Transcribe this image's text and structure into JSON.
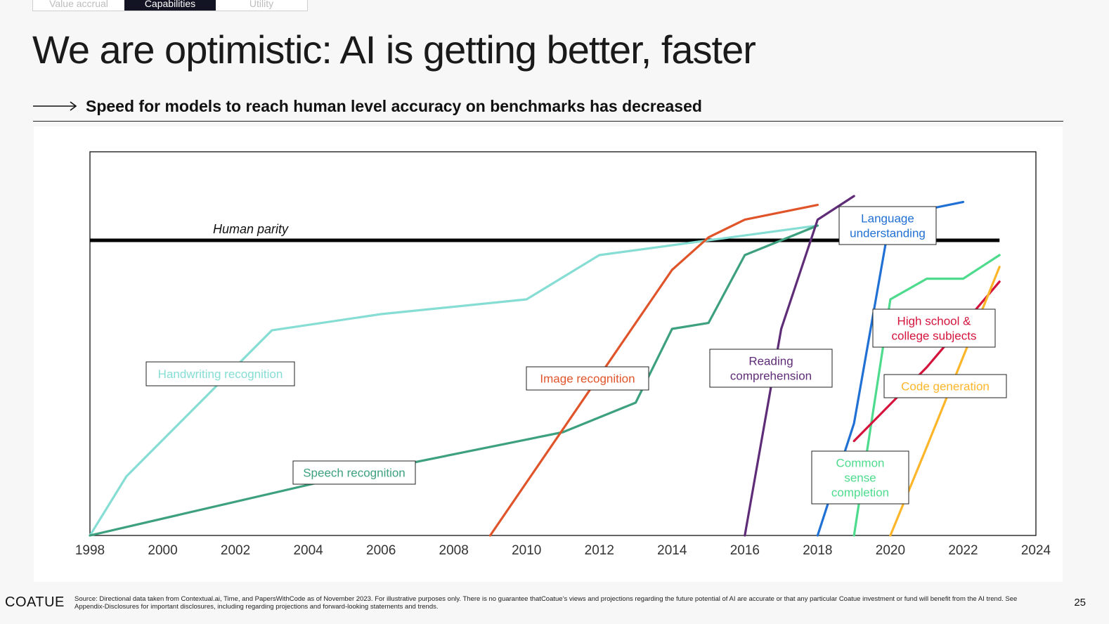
{
  "tabs": [
    {
      "label": "Value accrual",
      "active": false
    },
    {
      "label": "Capabilities",
      "active": true
    },
    {
      "label": "Utility",
      "active": false
    }
  ],
  "page": {
    "title": "We are optimistic: AI is getting better, faster",
    "subtitle": "Speed for models to reach human level accuracy on benchmarks has decreased"
  },
  "chart_data": {
    "type": "line",
    "title": "",
    "xlabel": "",
    "ylabel": "",
    "xlim": [
      1998,
      2024
    ],
    "ylim": [
      -100,
      30
    ],
    "x_ticks": [
      "1998",
      "2000",
      "2002",
      "2004",
      "2006",
      "2008",
      "2010",
      "2012",
      "2014",
      "2016",
      "2018",
      "2020",
      "2022",
      "2024"
    ],
    "grid": false,
    "reference_line": {
      "label": "Human parity",
      "y": 0,
      "x": [
        1998,
        2023
      ],
      "color": "#000000"
    },
    "series": [
      {
        "name": "Handwriting recognition",
        "color": "#86DDD4",
        "points": [
          [
            1998,
            -100
          ],
          [
            1999,
            -80
          ],
          [
            2003,
            -30.5
          ],
          [
            2006,
            -25
          ],
          [
            2010,
            -20
          ],
          [
            2012,
            -5
          ],
          [
            2018,
            5
          ]
        ]
      },
      {
        "name": "Speech recognition",
        "color": "#3DA07E",
        "points": [
          [
            1998,
            -100
          ],
          [
            2005,
            -80
          ],
          [
            2011,
            -65
          ],
          [
            2013,
            -55
          ],
          [
            2014,
            -30
          ],
          [
            2015,
            -28
          ],
          [
            2016,
            -5
          ],
          [
            2018,
            5
          ]
        ]
      },
      {
        "name": "Image recognition",
        "color": "#E0542A",
        "points": [
          [
            2009,
            -100
          ],
          [
            2014,
            -10
          ],
          [
            2015,
            1
          ],
          [
            2016,
            7
          ],
          [
            2018,
            12
          ]
        ]
      },
      {
        "name": "Reading comprehension",
        "color": "#5F2C78",
        "points": [
          [
            2016,
            -100
          ],
          [
            2017,
            -30
          ],
          [
            2018,
            7
          ],
          [
            2019,
            15
          ]
        ]
      },
      {
        "name": "Language understanding",
        "color": "#2170D4",
        "points": [
          [
            2018,
            -100
          ],
          [
            2019,
            -62
          ],
          [
            2020,
            8
          ],
          [
            2022,
            13
          ]
        ]
      },
      {
        "name": "Common sense completion",
        "color": "#4EDB8D",
        "points": [
          [
            2019,
            -100
          ],
          [
            2020,
            -20
          ],
          [
            2021,
            -13
          ],
          [
            2022,
            -13
          ],
          [
            2023,
            -5
          ]
        ]
      },
      {
        "name": "High school & college subjects",
        "color": "#D4143C",
        "points": [
          [
            2019,
            -68
          ],
          [
            2021,
            -43
          ],
          [
            2023,
            -14
          ]
        ]
      },
      {
        "name": "Code generation",
        "color": "#FDB62A",
        "points": [
          [
            2020,
            -100
          ],
          [
            2021,
            -70
          ],
          [
            2023,
            -9
          ]
        ]
      }
    ],
    "labels": [
      {
        "series": "Handwriting recognition",
        "lines": [
          "Handwriting recognition"
        ]
      },
      {
        "series": "Speech recognition",
        "lines": [
          "Speech recognition"
        ]
      },
      {
        "series": "Image recognition",
        "lines": [
          "Image recognition"
        ]
      },
      {
        "series": "Reading comprehension",
        "lines": [
          "Reading",
          "comprehension"
        ]
      },
      {
        "series": "Language understanding",
        "lines": [
          "Language",
          "understanding"
        ]
      },
      {
        "series": "High school & college subjects",
        "lines": [
          "High school &",
          "college subjects"
        ]
      },
      {
        "series": "Code generation",
        "lines": [
          "Code generation"
        ]
      },
      {
        "series": "Common sense completion",
        "lines": [
          "Common",
          "sense",
          "completion"
        ]
      }
    ]
  },
  "footer": {
    "logo": "COATUE",
    "source": "Source: Directional data taken from Contextual.ai, Time, and PapersWithCode as of November 2023. For illustrative purposes only. There is no guarantee thatCoatue’s views and projections regarding the future potential of AI are accurate or that any particular Coatue investment or fund will benefit from the AI trend. See Appendix-Disclosures for important disclosures, including regarding projections and forward-looking statements and trends.",
    "page_number": "25"
  }
}
